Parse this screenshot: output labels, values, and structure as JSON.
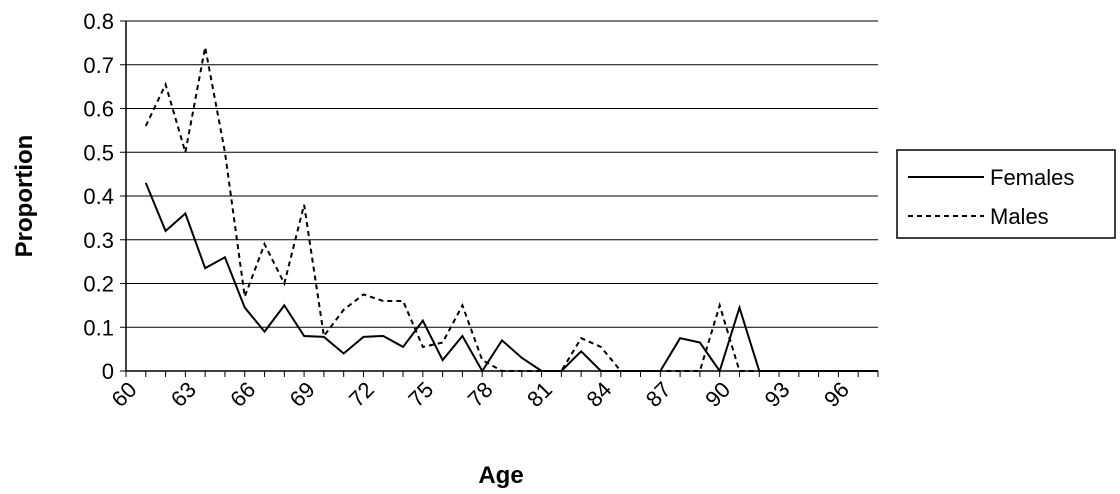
{
  "chart_data": {
    "type": "line",
    "xlabel": "Age",
    "ylabel": "Proportion",
    "ylim": [
      0,
      0.8
    ],
    "yticks": [
      "0",
      "0.1",
      "0.2",
      "0.3",
      "0.4",
      "0.5",
      "0.6",
      "0.7",
      "0.8"
    ],
    "xlim": [
      60,
      98
    ],
    "xticks": [
      "60",
      "63",
      "66",
      "69",
      "72",
      "75",
      "78",
      "81",
      "84",
      "87",
      "90",
      "93",
      "96"
    ],
    "grid": "horizontal",
    "legend_position": "right",
    "x": [
      61,
      62,
      63,
      64,
      65,
      66,
      67,
      68,
      69,
      70,
      71,
      72,
      73,
      74,
      75,
      76,
      77,
      78,
      79,
      80,
      81,
      82,
      83,
      84,
      85,
      86,
      87,
      88,
      89,
      90,
      91,
      92,
      93,
      94,
      95,
      96,
      97,
      98
    ],
    "series": [
      {
        "name": "Females",
        "style": "solid",
        "color": "#000000",
        "values": [
          0.43,
          0.32,
          0.36,
          0.235,
          0.26,
          0.145,
          0.09,
          0.15,
          0.08,
          0.078,
          0.04,
          0.078,
          0.08,
          0.055,
          0.115,
          0.025,
          0.08,
          0.0,
          0.07,
          0.03,
          0.0,
          0.0,
          0.045,
          0.0,
          0.0,
          0.0,
          0.0,
          0.075,
          0.065,
          0.0,
          0.145,
          0.0,
          0.0,
          0.0,
          0.0,
          0.0,
          0.0,
          0.0
        ]
      },
      {
        "name": "Males",
        "style": "dashed",
        "color": "#000000",
        "values": [
          0.56,
          0.655,
          0.5,
          0.74,
          0.5,
          0.17,
          0.29,
          0.2,
          0.38,
          0.08,
          0.14,
          0.175,
          0.16,
          0.16,
          0.055,
          0.065,
          0.15,
          0.025,
          0.0,
          0.0,
          0.0,
          0.0,
          0.075,
          0.055,
          0.0,
          0.0,
          0.0,
          0.0,
          0.0,
          0.15,
          0.0,
          0.0,
          0.0,
          0.0,
          0.0,
          0.0,
          0.0,
          0.0
        ]
      }
    ]
  }
}
